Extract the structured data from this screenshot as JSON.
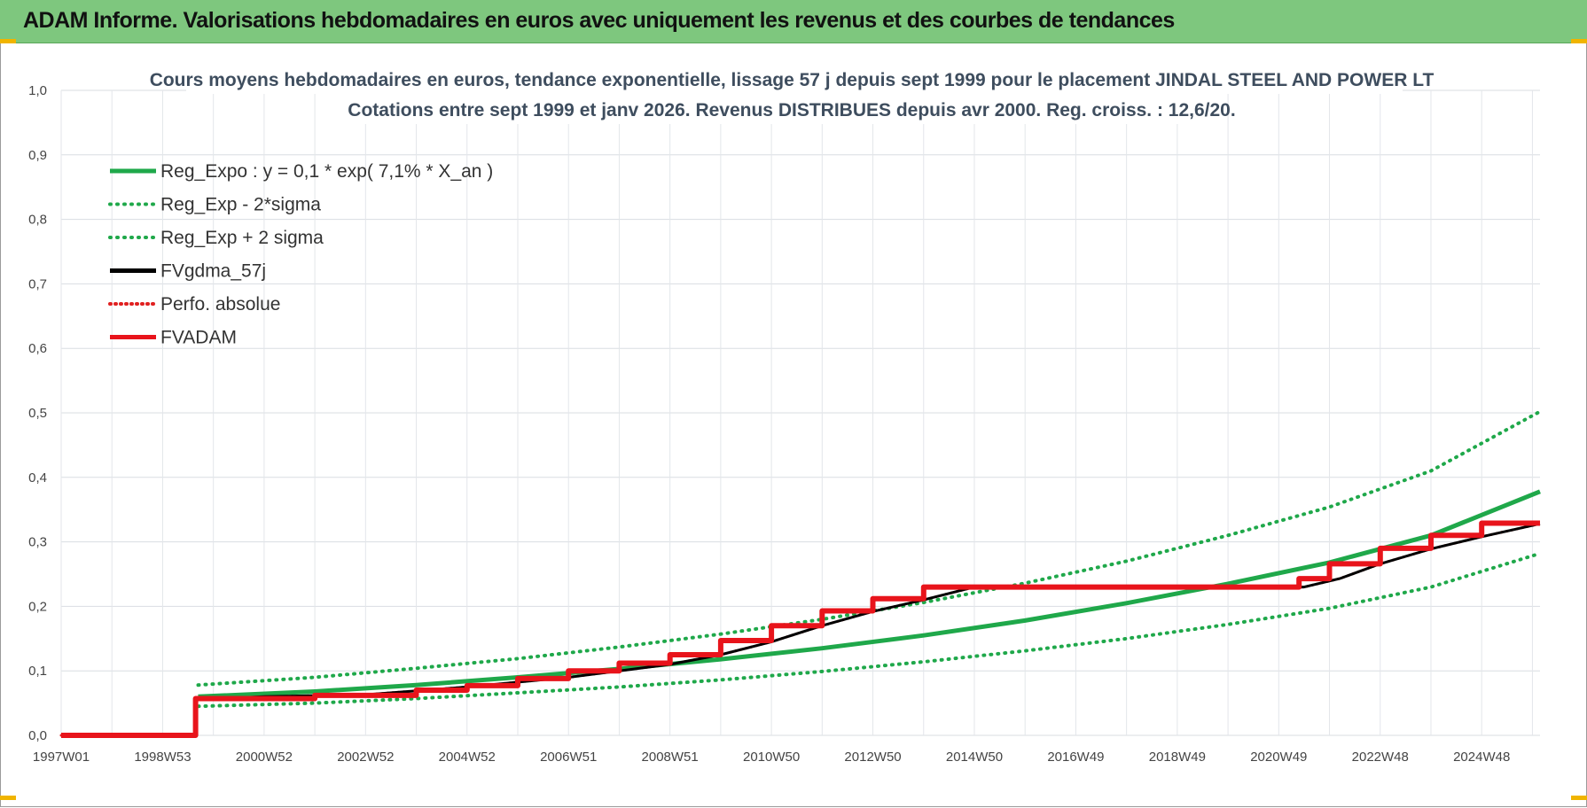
{
  "header": {
    "title": "ADAM Informe. Valorisations hebdomadaires en euros avec uniquement les revenus et des courbes de tendances"
  },
  "chart_data": {
    "type": "line",
    "title": "Cours moyens hebdomadaires en euros, tendance exponentielle, lissage 57 j depuis sept 1999 pour le placement JINDAL STEEL AND POWER LT",
    "subtitle": "Cotations entre sept 1999 et janv 2026. Revenus DISTRIBUES depuis avr 2000. Reg. croiss. : 12,6/20.",
    "xlabel": "",
    "ylabel": "",
    "ylim": [
      0,
      1.0
    ],
    "xlim": [
      1997.0,
      2026.15
    ],
    "grid": true,
    "legend_position": "top-left",
    "x_tick_labels": [
      "1997W01",
      "1998W53",
      "2000W52",
      "2002W52",
      "2004W52",
      "2006W51",
      "2008W51",
      "2010W50",
      "2012W50",
      "2014W50",
      "2016W49",
      "2018W49",
      "2020W49",
      "2022W48",
      "2024W48"
    ],
    "x_tick_positions": [
      1997.0,
      1999.0,
      2001.0,
      2003.0,
      2005.0,
      2007.0,
      2009.0,
      2011.0,
      2013.0,
      2015.0,
      2017.0,
      2019.0,
      2021.0,
      2023.0,
      2025.0
    ],
    "y_tick_labels": [
      "0,0",
      "0,1",
      "0,2",
      "0,3",
      "0,4",
      "0,5",
      "0,6",
      "0,7",
      "0,8",
      "0,9",
      "1,0"
    ],
    "y_ticks": [
      0,
      0.1,
      0.2,
      0.3,
      0.4,
      0.5,
      0.6,
      0.7,
      0.8,
      0.9,
      1.0
    ],
    "series": [
      {
        "name": "Reg_Expo : y = 0,1 * exp( 7,1% *  X_an )",
        "color": "#1fa84a",
        "style": "solid",
        "x": [
          1999.7,
          2002,
          2004,
          2006,
          2008,
          2010,
          2012,
          2014,
          2016,
          2018,
          2020,
          2022,
          2024,
          2026.15
        ],
        "y": [
          0.06,
          0.068,
          0.078,
          0.09,
          0.103,
          0.118,
          0.135,
          0.155,
          0.178,
          0.205,
          0.235,
          0.268,
          0.31,
          0.378
        ]
      },
      {
        "name": "Reg_Exp - 2*sigma",
        "color": "#1fa84a",
        "style": "dotted",
        "x": [
          1999.7,
          2002,
          2004,
          2006,
          2008,
          2010,
          2012,
          2014,
          2016,
          2018,
          2020,
          2022,
          2024,
          2026.15
        ],
        "y": [
          0.045,
          0.05,
          0.057,
          0.066,
          0.075,
          0.086,
          0.099,
          0.114,
          0.131,
          0.15,
          0.172,
          0.197,
          0.23,
          0.282
        ]
      },
      {
        "name": "Reg_Exp + 2 sigma",
        "color": "#1fa84a",
        "style": "dotted",
        "x": [
          1999.7,
          2002,
          2004,
          2006,
          2008,
          2010,
          2012,
          2014,
          2016,
          2018,
          2020,
          2022,
          2024,
          2026.15
        ],
        "y": [
          0.078,
          0.09,
          0.104,
          0.119,
          0.137,
          0.157,
          0.18,
          0.206,
          0.236,
          0.27,
          0.31,
          0.354,
          0.41,
          0.502
        ]
      },
      {
        "name": "FVgdma_57j",
        "color": "#000000",
        "style": "solid",
        "x": [
          1997.0,
          1999.65,
          1999.65,
          2001.0,
          2003.0,
          2005.0,
          2007.0,
          2008.0,
          2009.0,
          2010.0,
          2011.0,
          2012.0,
          2013.0,
          2014.0,
          2015.0,
          2021.5,
          2022.2,
          2023.0,
          2024.0,
          2025.0,
          2026.15
        ],
        "y": [
          0,
          0,
          0.055,
          0.06,
          0.063,
          0.075,
          0.09,
          0.1,
          0.11,
          0.125,
          0.145,
          0.17,
          0.192,
          0.21,
          0.23,
          0.23,
          0.243,
          0.266,
          0.289,
          0.308,
          0.328
        ]
      },
      {
        "name": "Perfo. absolue",
        "color": "#e02020",
        "style": "dotted",
        "x": [
          1997.0,
          1999.65,
          1999.65,
          2001.0,
          2003.0,
          2005.0,
          2007.0,
          2008.0,
          2009.0,
          2010.0,
          2011.0,
          2012.0,
          2013.0,
          2014.0,
          2015.0,
          2021.5,
          2022.2,
          2023.0,
          2024.0,
          2025.0,
          2026.15
        ],
        "y": [
          0,
          0,
          0.055,
          0.06,
          0.063,
          0.075,
          0.09,
          0.1,
          0.11,
          0.125,
          0.145,
          0.17,
          0.192,
          0.21,
          0.23,
          0.23,
          0.243,
          0.266,
          0.289,
          0.308,
          0.328
        ]
      },
      {
        "name": "FVADAM",
        "color": "#e8141b",
        "style": "step",
        "x": [
          1997.0,
          1999.65,
          1999.65,
          2002.0,
          2002.0,
          2004.0,
          2004.0,
          2005.0,
          2005.0,
          2006.0,
          2006.0,
          2007.0,
          2007.0,
          2008.0,
          2008.0,
          2009.0,
          2009.0,
          2010.0,
          2010.0,
          2011.0,
          2011.0,
          2012.0,
          2012.0,
          2013.0,
          2013.0,
          2014.0,
          2014.0,
          2021.4,
          2021.4,
          2022.0,
          2022.0,
          2023.0,
          2023.0,
          2024.0,
          2024.0,
          2025.0,
          2025.0,
          2026.15
        ],
        "y": [
          0,
          0,
          0.057,
          0.057,
          0.062,
          0.062,
          0.07,
          0.07,
          0.077,
          0.077,
          0.088,
          0.088,
          0.1,
          0.1,
          0.112,
          0.112,
          0.125,
          0.125,
          0.147,
          0.147,
          0.17,
          0.17,
          0.193,
          0.193,
          0.212,
          0.212,
          0.23,
          0.23,
          0.243,
          0.243,
          0.266,
          0.266,
          0.29,
          0.29,
          0.31,
          0.31,
          0.329,
          0.329
        ]
      }
    ]
  }
}
